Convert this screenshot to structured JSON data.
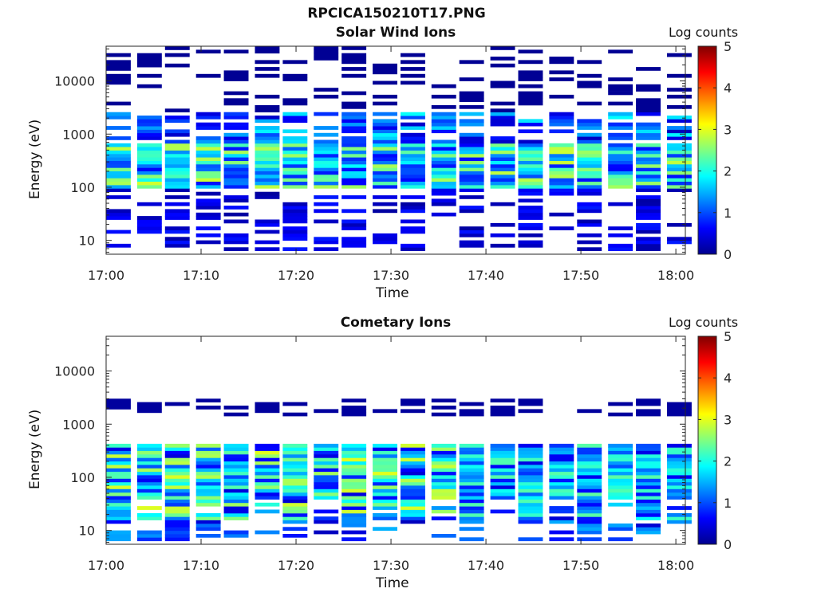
{
  "figure": {
    "title": "RPCICA150210T17.PNG"
  },
  "chart_data": [
    {
      "type": "heatmap",
      "title": "Solar Wind Ions",
      "xlabel": "Time",
      "ylabel": "Energy (eV)",
      "x_ticks": [
        "17:00",
        "17:10",
        "17:20",
        "17:30",
        "17:40",
        "17:50",
        "18:00"
      ],
      "y_ticks": [
        "10",
        "100",
        "1000",
        "10000"
      ],
      "y_scale": "log",
      "ylim": [
        5.5,
        45000
      ],
      "xlim": [
        "17:00",
        "18:01"
      ],
      "colorbar": {
        "title": "Log counts",
        "ticks": [
          "0",
          "1",
          "2",
          "3",
          "4",
          "5"
        ],
        "range": [
          0,
          5
        ],
        "colormap": "jet"
      },
      "time_steps_min": [
        0,
        3.1,
        6.2,
        9.3,
        12.4,
        15.5,
        18.6,
        21.7,
        24.8,
        27.9,
        31.0,
        34.1,
        37.2,
        40.3,
        43.4,
        46.5,
        49.6,
        52.7,
        55.8,
        58.9
      ],
      "peak_band_eV": [
        100,
        700
      ],
      "peak_log_counts": 2.3
    },
    {
      "type": "heatmap",
      "title": "Cometary Ions",
      "xlabel": "Time",
      "ylabel": "Energy (eV)",
      "x_ticks": [
        "17:00",
        "17:10",
        "17:20",
        "17:30",
        "17:40",
        "17:50",
        "18:00"
      ],
      "y_ticks": [
        "10",
        "100",
        "1000",
        "10000"
      ],
      "y_scale": "log",
      "ylim": [
        5.5,
        45000
      ],
      "xlim": [
        "17:00",
        "18:01"
      ],
      "colorbar": {
        "title": "Log counts",
        "ticks": [
          "0",
          "1",
          "2",
          "3",
          "4",
          "5"
        ],
        "range": [
          0,
          5
        ],
        "colormap": "jet"
      },
      "time_steps_min": [
        0,
        3.1,
        6.2,
        9.3,
        12.4,
        15.5,
        18.6,
        21.7,
        24.8,
        27.9,
        31.0,
        34.1,
        37.2,
        40.3,
        43.4,
        46.5,
        49.6,
        52.7,
        55.8,
        58.9
      ],
      "peak_band_eV": [
        15,
        450
      ],
      "peak_log_counts": 2.6
    }
  ]
}
